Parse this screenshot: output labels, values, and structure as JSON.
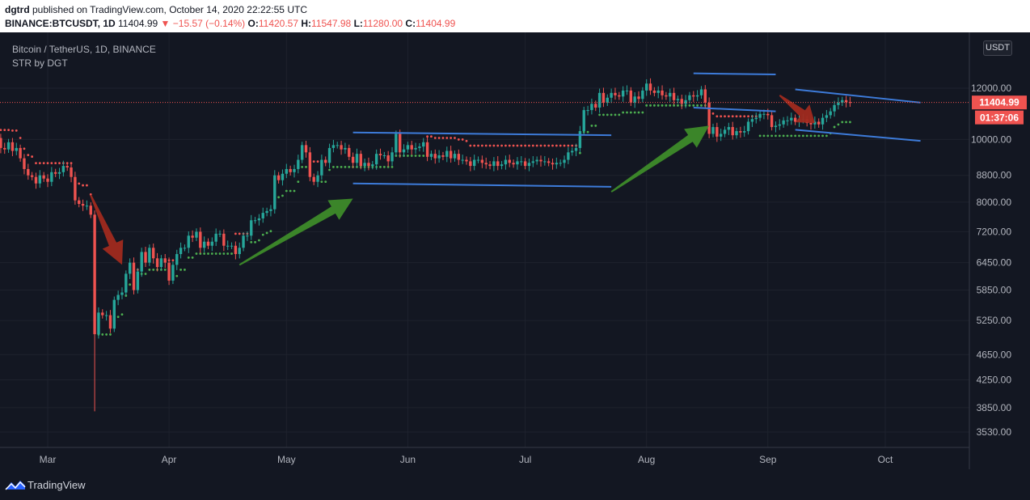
{
  "header": {
    "author": "dgtrd",
    "published_text": " published on TradingView.com, October 14, 2020 22:22:55 UTC",
    "symbol": "BINANCE:BTCUSDT, 1D",
    "last": "11404.99",
    "change_arrow": "▼",
    "change": "−15.57 (−0.14%)",
    "open_label": "O:",
    "open": "11420.57",
    "high_label": "H:",
    "high": "11547.98",
    "low_label": "L:",
    "low": "11280.00",
    "close_label": "C:",
    "close": "11404.99"
  },
  "legend": {
    "title": "Bitcoin / TetherUS, 1D, BINANCE",
    "indicator": "STR by DGT"
  },
  "currency_button": "USDT",
  "price_label": "11404.99",
  "countdown_label": "01:37:06",
  "footer": {
    "brand": "TradingView"
  },
  "colors": {
    "background": "#131722",
    "grid": "#1e222d",
    "up": "#26a69a",
    "down": "#ef5350",
    "supertrend_up": "#4caf50",
    "supertrend_down": "#ef5350",
    "channel": "#3d7bd9",
    "arrow_up": "#3d8b2a",
    "arrow_down": "#a02a1f",
    "signal": "#f5c518"
  },
  "chart_data": {
    "type": "candlestick",
    "title": "Bitcoin / TetherUS, 1D, BINANCE",
    "scale": "log",
    "y_ticks": [
      3530,
      3850,
      4250,
      4650,
      5250,
      5850,
      6450,
      7200,
      8000,
      8800,
      10000,
      12000
    ],
    "y_tick_labels": [
      "3530.00",
      "3850.00",
      "4250.00",
      "4650.00",
      "5250.00",
      "5850.00",
      "6450.00",
      "7200.00",
      "8000.00",
      "8800.00",
      "10000.00",
      "12000.00"
    ],
    "x_tick_labels": [
      "Mar",
      "Apr",
      "May",
      "Jun",
      "Jul",
      "Aug",
      "Sep",
      "Oct"
    ],
    "start_date": "2020-02-14",
    "last_price": 11404.99,
    "candles_close": [
      9850,
      9800,
      9900,
      10050,
      9700,
      9650,
      9900,
      9600,
      9700,
      9350,
      9000,
      8800,
      8750,
      8550,
      8800,
      8700,
      8600,
      8900,
      8850,
      8900,
      9100,
      9050,
      8750,
      8050,
      7950,
      7900,
      7900,
      7650,
      5000,
      5400,
      5350,
      5350,
      5100,
      5650,
      5750,
      5800,
      6200,
      6450,
      5850,
      6250,
      6700,
      6450,
      6800,
      6550,
      6350,
      6550,
      6450,
      6050,
      6400,
      6650,
      6800,
      6800,
      7100,
      7050,
      7200,
      6800,
      6950,
      6850,
      6950,
      7150,
      7150,
      6850,
      6850,
      6850,
      6650,
      6800,
      7100,
      7100,
      7500,
      7500,
      7550,
      7700,
      7750,
      7800,
      8800,
      8650,
      8850,
      9000,
      8900,
      9000,
      9300,
      9800,
      9550,
      8750,
      8600,
      8800,
      9300,
      9200,
      9700,
      9800,
      9800,
      9650,
      9700,
      9400,
      9200,
      9500,
      9100,
      9200,
      9100,
      9150,
      9500,
      9450,
      9450,
      9250,
      9550,
      10200,
      9550,
      9650,
      9800,
      9650,
      9700,
      9750,
      9900,
      9400,
      9500,
      9350,
      9450,
      9400,
      9600,
      9350,
      9500,
      9300,
      9300,
      9250,
      9100,
      9300,
      9300,
      9200,
      9150,
      9100,
      9250,
      9100,
      9150,
      9300,
      9200,
      9150,
      9250,
      9250,
      9100,
      9200,
      9250,
      9300,
      9250,
      9250,
      9200,
      9150,
      9200,
      9200,
      9300,
      9550,
      9600,
      9700,
      10300,
      11100,
      11100,
      11350,
      11200,
      11800,
      11400,
      11600,
      11800,
      11700,
      11650,
      11900,
      11900,
      11400,
      11650,
      11550,
      11900,
      12200,
      11900,
      11800,
      11900,
      11700,
      11650,
      11800,
      11500,
      11550,
      11350,
      11500,
      11700,
      11650,
      11700,
      11950,
      11400,
      10200,
      10450,
      10100,
      10200,
      10350,
      10450,
      10150,
      10300,
      10250,
      10300,
      10650,
      10750,
      10800,
      10950,
      10950,
      10900,
      10450,
      10500,
      10550,
      10700,
      10700,
      10800,
      10650,
      10750,
      10750,
      10600,
      10550,
      10650,
      10550,
      10800,
      10900,
      11050,
      11300,
      11400,
      11500,
      11420,
      11405
    ],
    "channels": [
      {
        "start": "2020-05-18",
        "end": "2020-07-23",
        "upper": [
          10250,
          10150
        ],
        "lower": [
          8550,
          8450
        ]
      },
      {
        "start": "2020-08-13",
        "end": "2020-09-03",
        "upper": [
          12650,
          12600
        ],
        "lower": [
          11200,
          11050
        ]
      },
      {
        "start": "2020-09-08",
        "end": "2020-10-10",
        "upper": [
          11950,
          11400
        ],
        "lower": [
          10350,
          9950
        ]
      }
    ],
    "annotations": [
      {
        "type": "arrow",
        "direction": "down",
        "from": [
          "2020-03-12",
          8200
        ],
        "to": [
          "2020-03-20",
          6400
        ]
      },
      {
        "type": "arrow",
        "direction": "up",
        "from": [
          "2020-04-19",
          6400
        ],
        "to": [
          "2020-05-18",
          8100
        ]
      },
      {
        "type": "arrow",
        "direction": "up",
        "from": [
          "2020-07-23",
          8300
        ],
        "to": [
          "2020-08-17",
          10500
        ]
      },
      {
        "type": "arrow",
        "direction": "down",
        "from": [
          "2020-09-04",
          11700
        ],
        "to": [
          "2020-09-13",
          10600
        ]
      }
    ]
  }
}
